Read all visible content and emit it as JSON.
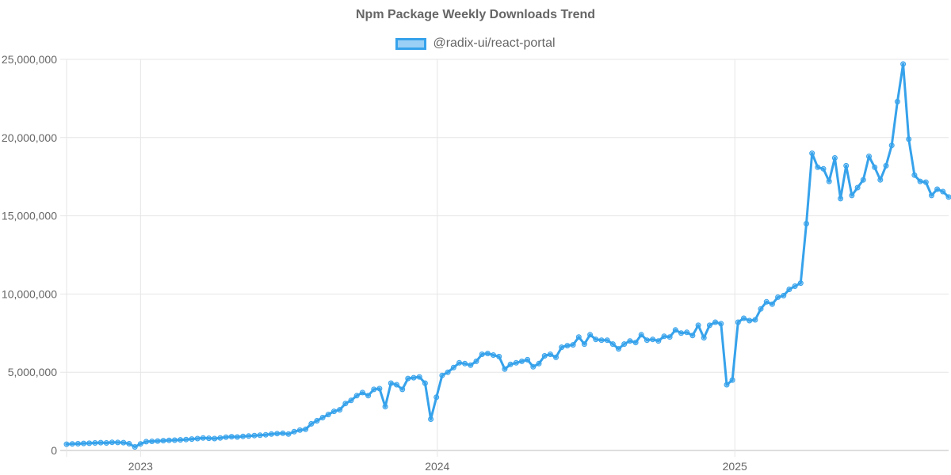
{
  "chart_data": {
    "type": "line",
    "title": "Npm Package Weekly Downloads Trend",
    "xlabel": "",
    "ylabel": "",
    "x_start": "2022-10-02",
    "x_interval_days": 7,
    "x_ticks": [
      "2023",
      "2024",
      "2025"
    ],
    "y_ticks": [
      "0",
      "5,000,000",
      "10,000,000",
      "15,000,000",
      "20,000,000",
      "25,000,000"
    ],
    "ylim": [
      0,
      25000000
    ],
    "grid": true,
    "legend_position": "top",
    "colors": {
      "line": "#36a2eb",
      "fill": "rgba(54,162,235,0.5)",
      "grid": "#e6e6e6",
      "text": "#666666"
    },
    "series": [
      {
        "name": "@radix-ui/react-portal",
        "values": [
          400000,
          420000,
          430000,
          450000,
          460000,
          480000,
          500000,
          480000,
          520000,
          510000,
          500000,
          430000,
          230000,
          420000,
          560000,
          580000,
          600000,
          630000,
          650000,
          660000,
          680000,
          700000,
          730000,
          760000,
          800000,
          780000,
          760000,
          800000,
          850000,
          880000,
          860000,
          900000,
          920000,
          950000,
          970000,
          1000000,
          1050000,
          1080000,
          1100000,
          1050000,
          1200000,
          1300000,
          1350000,
          1700000,
          1900000,
          2100000,
          2300000,
          2500000,
          2600000,
          3000000,
          3200000,
          3500000,
          3700000,
          3500000,
          3900000,
          3950000,
          2800000,
          4300000,
          4200000,
          3900000,
          4600000,
          4650000,
          4700000,
          4300000,
          2000000,
          3400000,
          4800000,
          5000000,
          5300000,
          5600000,
          5550000,
          5450000,
          5700000,
          6150000,
          6200000,
          6100000,
          6000000,
          5200000,
          5500000,
          5600000,
          5700000,
          5800000,
          5350000,
          5550000,
          6050000,
          6150000,
          5950000,
          6600000,
          6700000,
          6750000,
          7250000,
          6800000,
          7400000,
          7100000,
          7050000,
          7050000,
          6800000,
          6500000,
          6800000,
          7000000,
          6900000,
          7400000,
          7050000,
          7100000,
          7000000,
          7300000,
          7250000,
          7700000,
          7500000,
          7550000,
          7350000,
          8000000,
          7200000,
          8000000,
          8200000,
          8100000,
          4200000,
          4500000,
          8200000,
          8450000,
          8300000,
          8350000,
          9050000,
          9500000,
          9350000,
          9800000,
          9900000,
          10300000,
          10500000,
          10700000,
          14500000,
          19000000,
          18100000,
          18000000,
          17200000,
          18700000,
          16100000,
          18200000,
          16300000,
          16800000,
          17300000,
          18800000,
          18100000,
          17300000,
          18200000,
          19500000,
          22300000,
          24700000,
          19900000,
          17600000,
          17200000,
          17150000,
          16300000,
          16700000,
          16550000,
          16200000
        ]
      }
    ]
  }
}
